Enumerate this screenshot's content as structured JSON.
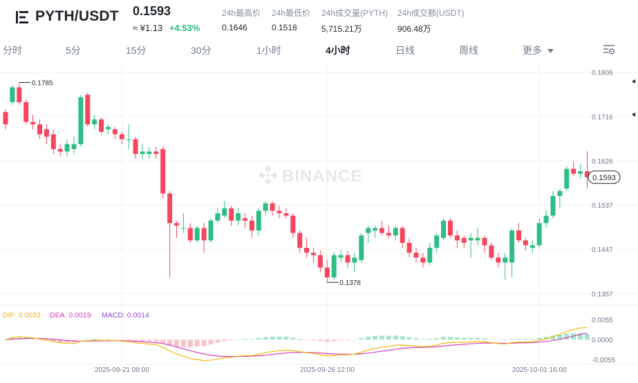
{
  "header": {
    "pair": "PYTH/USDT",
    "last_price": "0.1593",
    "cny_price": "≈ ¥1.13",
    "change_pct": "+4.53%",
    "stats": [
      {
        "label": "24h最高价",
        "value": "0.1646"
      },
      {
        "label": "24h最低价",
        "value": "0.1518"
      },
      {
        "label": "24h成交量(PYTH)",
        "value": "5,715.21万"
      },
      {
        "label": "24h成交额(USDT)",
        "value": "906.48万"
      }
    ]
  },
  "tabs": [
    {
      "label": "分时"
    },
    {
      "label": "5分"
    },
    {
      "label": "15分"
    },
    {
      "label": "30分"
    },
    {
      "label": "1小时"
    },
    {
      "label": "4小时",
      "active": true
    },
    {
      "label": "日线"
    },
    {
      "label": "周线"
    },
    {
      "label": "更多"
    }
  ],
  "colors": {
    "up": "#2ebd85",
    "down": "#f6465d",
    "dif": "#f0b90b",
    "dea": "#d63bb5",
    "macd": "#8f4bd6"
  },
  "chart_data": {
    "type": "candlestick",
    "watermark": "BINANCE",
    "price_axis": {
      "ticks": [
        "0.1806",
        "0.1716",
        "0.1626",
        "0.1537",
        "0.1447",
        "0.1357"
      ],
      "range": [
        0.1334,
        0.1829
      ]
    },
    "time_labels": [
      {
        "text": "2025-09-21 08:00",
        "index": 17
      },
      {
        "text": "2025-09-26 12:00",
        "index": 47
      },
      {
        "text": "2025-10-01 16:00",
        "index": 78
      }
    ],
    "high_annotation": "0.1785",
    "low_annotation": "0.1378",
    "current_price_label": "0.1593",
    "candles": [
      [
        0.1725,
        0.173,
        0.169,
        0.17
      ],
      [
        0.1745,
        0.178,
        0.174,
        0.1775
      ],
      [
        0.1775,
        0.1785,
        0.174,
        0.1745
      ],
      [
        0.1745,
        0.175,
        0.17,
        0.1705
      ],
      [
        0.1705,
        0.172,
        0.169,
        0.17
      ],
      [
        0.17,
        0.171,
        0.167,
        0.168
      ],
      [
        0.169,
        0.17,
        0.166,
        0.1675
      ],
      [
        0.168,
        0.169,
        0.164,
        0.165
      ],
      [
        0.165,
        0.166,
        0.1635,
        0.1645
      ],
      [
        0.1645,
        0.167,
        0.1635,
        0.166
      ],
      [
        0.165,
        0.1675,
        0.164,
        0.166
      ],
      [
        0.166,
        0.176,
        0.1655,
        0.1755
      ],
      [
        0.176,
        0.1765,
        0.1695,
        0.17
      ],
      [
        0.17,
        0.172,
        0.169,
        0.171
      ],
      [
        0.171,
        0.1715,
        0.168,
        0.1685
      ],
      [
        0.169,
        0.17,
        0.168,
        0.1695
      ],
      [
        0.169,
        0.1695,
        0.167,
        0.168
      ],
      [
        0.168,
        0.1685,
        0.166,
        0.167
      ],
      [
        0.167,
        0.17,
        0.165,
        0.167
      ],
      [
        0.167,
        0.1675,
        0.163,
        0.164
      ],
      [
        0.164,
        0.166,
        0.163,
        0.1645
      ],
      [
        0.164,
        0.1655,
        0.163,
        0.1645
      ],
      [
        0.1645,
        0.1655,
        0.163,
        0.164
      ],
      [
        0.165,
        0.1655,
        0.155,
        0.156
      ],
      [
        0.156,
        0.1565,
        0.139,
        0.15
      ],
      [
        0.15,
        0.1505,
        0.147,
        0.1495
      ],
      [
        0.149,
        0.152,
        0.148,
        0.149
      ],
      [
        0.149,
        0.15,
        0.146,
        0.1465
      ],
      [
        0.1465,
        0.1495,
        0.146,
        0.149
      ],
      [
        0.149,
        0.15,
        0.144,
        0.1465
      ],
      [
        0.1465,
        0.151,
        0.146,
        0.1505
      ],
      [
        0.1505,
        0.153,
        0.15,
        0.152
      ],
      [
        0.1515,
        0.1545,
        0.151,
        0.153
      ],
      [
        0.153,
        0.1535,
        0.1495,
        0.1505
      ],
      [
        0.1505,
        0.153,
        0.1495,
        0.152
      ],
      [
        0.151,
        0.152,
        0.149,
        0.1505
      ],
      [
        0.1505,
        0.1515,
        0.147,
        0.1485
      ],
      [
        0.1485,
        0.153,
        0.1475,
        0.1525
      ],
      [
        0.1525,
        0.1545,
        0.1515,
        0.154
      ],
      [
        0.154,
        0.1545,
        0.1515,
        0.1525
      ],
      [
        0.1525,
        0.1535,
        0.151,
        0.152
      ],
      [
        0.152,
        0.153,
        0.151,
        0.1515
      ],
      [
        0.1515,
        0.152,
        0.147,
        0.148
      ],
      [
        0.148,
        0.1485,
        0.144,
        0.145
      ],
      [
        0.145,
        0.147,
        0.143,
        0.144
      ],
      [
        0.144,
        0.145,
        0.142,
        0.1435
      ],
      [
        0.1435,
        0.1445,
        0.14,
        0.141
      ],
      [
        0.141,
        0.1425,
        0.138,
        0.139
      ],
      [
        0.139,
        0.144,
        0.1385,
        0.1435
      ],
      [
        0.143,
        0.1445,
        0.142,
        0.1435
      ],
      [
        0.1435,
        0.1445,
        0.141,
        0.142
      ],
      [
        0.142,
        0.144,
        0.14,
        0.143
      ],
      [
        0.1425,
        0.148,
        0.142,
        0.1475
      ],
      [
        0.148,
        0.1495,
        0.146,
        0.149
      ],
      [
        0.1485,
        0.1495,
        0.147,
        0.149
      ],
      [
        0.149,
        0.1505,
        0.1475,
        0.148
      ],
      [
        0.148,
        0.1495,
        0.147,
        0.1475
      ],
      [
        0.1475,
        0.1495,
        0.1465,
        0.149
      ],
      [
        0.149,
        0.1495,
        0.145,
        0.146
      ],
      [
        0.146,
        0.147,
        0.143,
        0.144
      ],
      [
        0.144,
        0.145,
        0.142,
        0.143
      ],
      [
        0.143,
        0.144,
        0.141,
        0.142
      ],
      [
        0.142,
        0.146,
        0.1415,
        0.145
      ],
      [
        0.145,
        0.148,
        0.144,
        0.1475
      ],
      [
        0.147,
        0.151,
        0.1465,
        0.1505
      ],
      [
        0.1505,
        0.151,
        0.147,
        0.1475
      ],
      [
        0.1475,
        0.1485,
        0.145,
        0.1465
      ],
      [
        0.147,
        0.1475,
        0.145,
        0.146
      ],
      [
        0.1465,
        0.148,
        0.143,
        0.147
      ],
      [
        0.1465,
        0.149,
        0.1455,
        0.147
      ],
      [
        0.147,
        0.1475,
        0.144,
        0.1455
      ],
      [
        0.1455,
        0.146,
        0.1425,
        0.143
      ],
      [
        0.143,
        0.144,
        0.141,
        0.142
      ],
      [
        0.142,
        0.144,
        0.1385,
        0.143
      ],
      [
        0.142,
        0.149,
        0.139,
        0.1485
      ],
      [
        0.1485,
        0.15,
        0.146,
        0.1465
      ],
      [
        0.1465,
        0.147,
        0.1445,
        0.1455
      ],
      [
        0.145,
        0.1465,
        0.144,
        0.1455
      ],
      [
        0.1455,
        0.151,
        0.145,
        0.15
      ],
      [
        0.15,
        0.1525,
        0.149,
        0.1515
      ],
      [
        0.1515,
        0.1565,
        0.151,
        0.1555
      ],
      [
        0.1555,
        0.157,
        0.153,
        0.1565
      ],
      [
        0.157,
        0.1615,
        0.1565,
        0.161
      ],
      [
        0.161,
        0.1625,
        0.1595,
        0.16
      ],
      [
        0.16,
        0.162,
        0.159,
        0.1605
      ],
      [
        0.1605,
        0.1646,
        0.157,
        0.1593
      ]
    ],
    "macd": {
      "legend": {
        "dif": "DIF: 0.0033",
        "dea": "DEA: 0.0019",
        "macd": "MACD: 0.0014"
      },
      "axis_ticks": [
        "0.0055",
        "0.0000",
        "-0.0055"
      ],
      "range": [
        -0.0068,
        0.008
      ]
    }
  }
}
